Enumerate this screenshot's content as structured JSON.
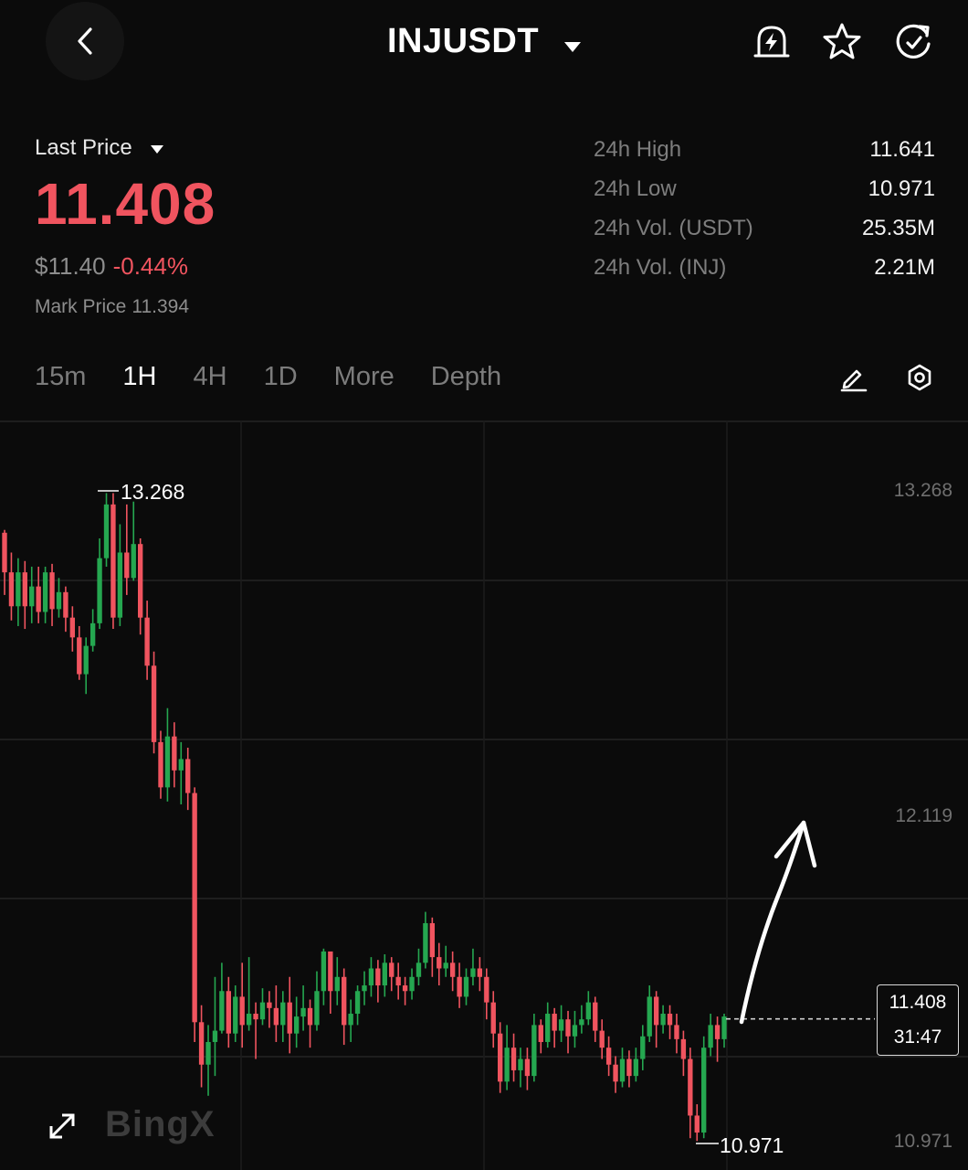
{
  "header": {
    "symbol": "INJUSDT",
    "icons": [
      "back-arrow-icon",
      "caret-down-icon",
      "price-alert-bell-icon",
      "star-icon",
      "refresh-icon"
    ]
  },
  "price": {
    "last_price_label": "Last Price",
    "last_price": "11.408",
    "usd_price": "$11.40",
    "change_pct": "-0.44%",
    "mark_label": "Mark Price",
    "mark_value": "11.394",
    "down_color": "#f0545f",
    "up_color": "#25a750"
  },
  "stats": [
    {
      "label": "24h High",
      "value": "11.641"
    },
    {
      "label": "24h Low",
      "value": "10.971"
    },
    {
      "label": "24h Vol. (USDT)",
      "value": "25.35M"
    },
    {
      "label": "24h Vol. (INJ)",
      "value": "2.21M"
    }
  ],
  "tabs": [
    {
      "label": "15m",
      "active": false
    },
    {
      "label": "1H",
      "active": true
    },
    {
      "label": "4H",
      "active": false
    },
    {
      "label": "1D",
      "active": false
    },
    {
      "label": "More",
      "active": false
    },
    {
      "label": "Depth",
      "active": false
    }
  ],
  "tools": [
    "pencil-draw-icon",
    "settings-hex-icon"
  ],
  "chart_data": {
    "type": "candlestick",
    "interval": "1H",
    "y_axis_labels": [
      "13.268",
      "12.119",
      "10.971"
    ],
    "ylim": [
      10.971,
      13.268
    ],
    "high_marker": "13.268",
    "low_marker": "10.971",
    "current_price": "11.408",
    "countdown": "31:47",
    "candles": [
      [
        13.12,
        12.98,
        13.13,
        12.9
      ],
      [
        12.98,
        12.86,
        13.05,
        12.81
      ],
      [
        12.86,
        12.98,
        13.03,
        12.79
      ],
      [
        12.98,
        12.86,
        13.02,
        12.78
      ],
      [
        12.86,
        12.93,
        13.0,
        12.8
      ],
      [
        12.93,
        12.84,
        13.0,
        12.8
      ],
      [
        12.84,
        12.98,
        13.0,
        12.8
      ],
      [
        12.98,
        12.85,
        13.01,
        12.79
      ],
      [
        12.85,
        12.91,
        12.96,
        12.82
      ],
      [
        12.91,
        12.82,
        12.93,
        12.77
      ],
      [
        12.82,
        12.75,
        12.86,
        12.7
      ],
      [
        12.75,
        12.62,
        12.79,
        12.6
      ],
      [
        12.62,
        12.72,
        12.75,
        12.55
      ],
      [
        12.72,
        12.8,
        12.85,
        12.7
      ],
      [
        12.8,
        13.03,
        13.1,
        12.78
      ],
      [
        13.03,
        13.22,
        13.26,
        13.0
      ],
      [
        13.22,
        12.82,
        13.26,
        12.78
      ],
      [
        12.82,
        13.05,
        13.15,
        12.79
      ],
      [
        13.05,
        12.96,
        13.22,
        12.9
      ],
      [
        12.96,
        13.08,
        13.23,
        12.95
      ],
      [
        13.08,
        12.82,
        13.1,
        12.76
      ],
      [
        12.82,
        12.65,
        12.88,
        12.6
      ],
      [
        12.65,
        12.38,
        12.7,
        12.34
      ],
      [
        12.38,
        12.22,
        12.42,
        12.18
      ],
      [
        12.22,
        12.4,
        12.5,
        12.17
      ],
      [
        12.4,
        12.28,
        12.45,
        12.22
      ],
      [
        12.28,
        12.32,
        12.38,
        12.16
      ],
      [
        12.32,
        12.2,
        12.36,
        12.14
      ],
      [
        12.2,
        11.39,
        12.22,
        11.32
      ],
      [
        11.39,
        11.24,
        11.45,
        11.16
      ],
      [
        11.24,
        11.32,
        11.38,
        11.13
      ],
      [
        11.32,
        11.36,
        11.55,
        11.2
      ],
      [
        11.36,
        11.5,
        11.6,
        11.35
      ],
      [
        11.5,
        11.35,
        11.55,
        11.3
      ],
      [
        11.35,
        11.48,
        11.52,
        11.32
      ],
      [
        11.48,
        11.38,
        11.6,
        11.3
      ],
      [
        11.38,
        11.42,
        11.62,
        11.36
      ],
      [
        11.42,
        11.4,
        11.46,
        11.26
      ],
      [
        11.4,
        11.46,
        11.51,
        11.38
      ],
      [
        11.46,
        11.44,
        11.5,
        11.37
      ],
      [
        11.44,
        11.38,
        11.52,
        11.32
      ],
      [
        11.38,
        11.46,
        11.5,
        11.32
      ],
      [
        11.46,
        11.35,
        11.55,
        11.28
      ],
      [
        11.35,
        11.41,
        11.48,
        11.3
      ],
      [
        11.41,
        11.44,
        11.52,
        11.36
      ],
      [
        11.44,
        11.38,
        11.47,
        11.3
      ],
      [
        11.38,
        11.5,
        11.57,
        11.36
      ],
      [
        11.5,
        11.64,
        11.65,
        11.45
      ],
      [
        11.64,
        11.5,
        11.6,
        11.42
      ],
      [
        11.5,
        11.55,
        11.62,
        11.45
      ],
      [
        11.55,
        11.38,
        11.58,
        11.31
      ],
      [
        11.38,
        11.42,
        11.47,
        11.32
      ],
      [
        11.42,
        11.5,
        11.52,
        11.38
      ],
      [
        11.5,
        11.52,
        11.57,
        11.45
      ],
      [
        11.52,
        11.58,
        11.62,
        11.48
      ],
      [
        11.58,
        11.52,
        11.61,
        11.46
      ],
      [
        11.52,
        11.6,
        11.63,
        11.48
      ],
      [
        11.6,
        11.55,
        11.62,
        11.5
      ],
      [
        11.55,
        11.52,
        11.6,
        11.47
      ],
      [
        11.52,
        11.5,
        11.55,
        11.45
      ],
      [
        11.5,
        11.55,
        11.58,
        11.47
      ],
      [
        11.55,
        11.6,
        11.65,
        11.52
      ],
      [
        11.6,
        11.74,
        11.78,
        11.58
      ],
      [
        11.74,
        11.62,
        11.76,
        11.55
      ],
      [
        11.62,
        11.58,
        11.67,
        11.52
      ],
      [
        11.58,
        11.6,
        11.66,
        11.55
      ],
      [
        11.6,
        11.55,
        11.64,
        11.5
      ],
      [
        11.55,
        11.48,
        11.6,
        11.44
      ],
      [
        11.48,
        11.55,
        11.58,
        11.45
      ],
      [
        11.55,
        11.58,
        11.65,
        11.52
      ],
      [
        11.58,
        11.55,
        11.62,
        11.5
      ],
      [
        11.55,
        11.46,
        11.58,
        11.4
      ],
      [
        11.46,
        11.35,
        11.5,
        11.3
      ],
      [
        11.35,
        11.18,
        11.39,
        11.14
      ],
      [
        11.18,
        11.3,
        11.38,
        11.15
      ],
      [
        11.3,
        11.22,
        11.35,
        11.18
      ],
      [
        11.22,
        11.26,
        11.3,
        11.16
      ],
      [
        11.26,
        11.2,
        11.3,
        11.15
      ],
      [
        11.2,
        11.38,
        11.42,
        11.18
      ],
      [
        11.38,
        11.32,
        11.4,
        11.28
      ],
      [
        11.32,
        11.42,
        11.46,
        11.3
      ],
      [
        11.42,
        11.36,
        11.44,
        11.3
      ],
      [
        11.36,
        11.4,
        11.45,
        11.32
      ],
      [
        11.4,
        11.34,
        11.43,
        11.28
      ],
      [
        11.34,
        11.38,
        11.43,
        11.3
      ],
      [
        11.38,
        11.4,
        11.45,
        11.35
      ],
      [
        11.4,
        11.46,
        11.5,
        11.38
      ],
      [
        11.46,
        11.36,
        11.48,
        11.32
      ],
      [
        11.36,
        11.3,
        11.4,
        11.26
      ],
      [
        11.3,
        11.24,
        11.34,
        11.2
      ],
      [
        11.24,
        11.18,
        11.27,
        11.14
      ],
      [
        11.18,
        11.26,
        11.3,
        11.16
      ],
      [
        11.26,
        11.2,
        11.29,
        11.16
      ],
      [
        11.2,
        11.26,
        11.3,
        11.18
      ],
      [
        11.26,
        11.34,
        11.38,
        11.22
      ],
      [
        11.34,
        11.48,
        11.52,
        11.32
      ],
      [
        11.48,
        11.38,
        11.5,
        11.3
      ],
      [
        11.38,
        11.42,
        11.45,
        11.35
      ],
      [
        11.42,
        11.38,
        11.45,
        11.33
      ],
      [
        11.38,
        11.33,
        11.42,
        11.28
      ],
      [
        11.33,
        11.26,
        11.36,
        11.2
      ],
      [
        11.26,
        11.06,
        11.3,
        10.98
      ],
      [
        11.06,
        11.0,
        11.1,
        10.97
      ],
      [
        11.0,
        11.3,
        11.34,
        10.98
      ],
      [
        11.3,
        11.38,
        11.42,
        11.27
      ],
      [
        11.38,
        11.33,
        11.41,
        11.25
      ],
      [
        11.33,
        11.41,
        11.42,
        11.3
      ]
    ]
  }
}
